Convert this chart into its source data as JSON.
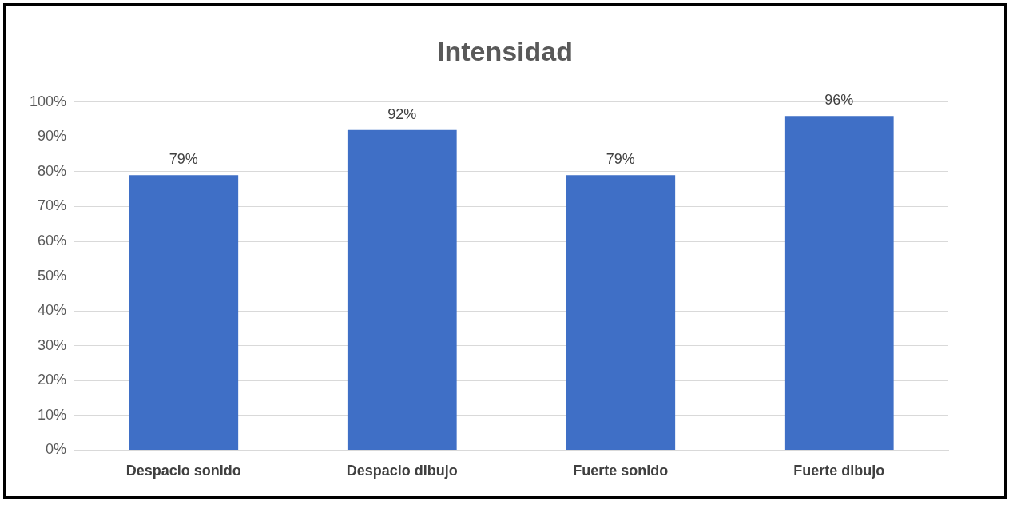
{
  "chart_data": {
    "type": "bar",
    "title": "Intensidad",
    "categories": [
      "Despacio sonido",
      "Despacio dibujo",
      "Fuerte sonido",
      "Fuerte dibujo"
    ],
    "values": [
      79,
      92,
      79,
      96
    ],
    "value_labels": [
      "79%",
      "92%",
      "79%",
      "96%"
    ],
    "color": "#3f6fc6",
    "ylim": [
      0,
      100
    ],
    "yticks": [
      {
        "value": 0,
        "label": "0%"
      },
      {
        "value": 10,
        "label": "10%"
      },
      {
        "value": 20,
        "label": "20%"
      },
      {
        "value": 30,
        "label": "30%"
      },
      {
        "value": 40,
        "label": "40%"
      },
      {
        "value": 50,
        "label": "50%"
      },
      {
        "value": 60,
        "label": "60%"
      },
      {
        "value": 70,
        "label": "70%"
      },
      {
        "value": 80,
        "label": "80%"
      },
      {
        "value": 90,
        "label": "90%"
      },
      {
        "value": 100,
        "label": "100%"
      }
    ],
    "grid": "y",
    "legend": false
  }
}
